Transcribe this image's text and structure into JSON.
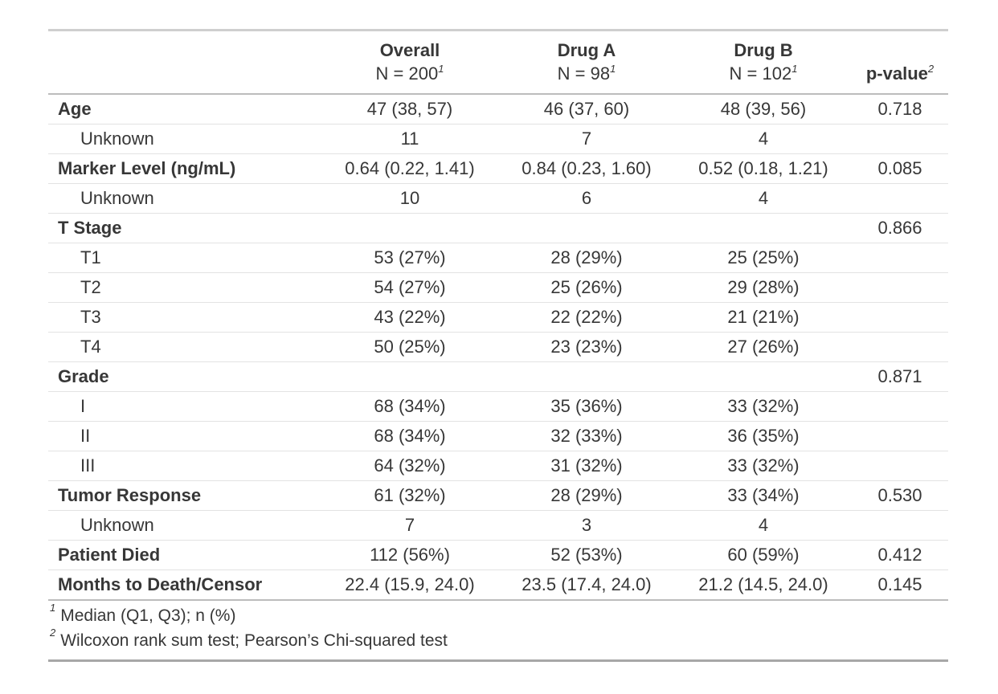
{
  "chart_data": {
    "type": "table",
    "title": "",
    "columns": [
      {
        "key": "label",
        "label": "",
        "sub": "",
        "footnote_mark": ""
      },
      {
        "key": "overall",
        "label": "Overall",
        "sub": "N = 200",
        "footnote_mark": "1"
      },
      {
        "key": "drug_a",
        "label": "Drug A",
        "sub": "N = 98",
        "footnote_mark": "1"
      },
      {
        "key": "drug_b",
        "label": "Drug B",
        "sub": "N = 102",
        "footnote_mark": "1"
      },
      {
        "key": "p_value",
        "label": "p-value",
        "sub": "",
        "footnote_mark": "2"
      }
    ],
    "rows": [
      {
        "label": "Age",
        "bold": true,
        "indent": false,
        "overall": "47 (38, 57)",
        "drug_a": "46 (37, 60)",
        "drug_b": "48 (39, 56)",
        "p_value": "0.718"
      },
      {
        "label": "Unknown",
        "bold": false,
        "indent": true,
        "overall": "11",
        "drug_a": "7",
        "drug_b": "4",
        "p_value": ""
      },
      {
        "label": "Marker Level (ng/mL)",
        "bold": true,
        "indent": false,
        "overall": "0.64 (0.22, 1.41)",
        "drug_a": "0.84 (0.23, 1.60)",
        "drug_b": "0.52 (0.18, 1.21)",
        "p_value": "0.085"
      },
      {
        "label": "Unknown",
        "bold": false,
        "indent": true,
        "overall": "10",
        "drug_a": "6",
        "drug_b": "4",
        "p_value": ""
      },
      {
        "label": "T Stage",
        "bold": true,
        "indent": false,
        "overall": "",
        "drug_a": "",
        "drug_b": "",
        "p_value": "0.866"
      },
      {
        "label": "T1",
        "bold": false,
        "indent": true,
        "overall": "53 (27%)",
        "drug_a": "28 (29%)",
        "drug_b": "25 (25%)",
        "p_value": ""
      },
      {
        "label": "T2",
        "bold": false,
        "indent": true,
        "overall": "54 (27%)",
        "drug_a": "25 (26%)",
        "drug_b": "29 (28%)",
        "p_value": ""
      },
      {
        "label": "T3",
        "bold": false,
        "indent": true,
        "overall": "43 (22%)",
        "drug_a": "22 (22%)",
        "drug_b": "21 (21%)",
        "p_value": ""
      },
      {
        "label": "T4",
        "bold": false,
        "indent": true,
        "overall": "50 (25%)",
        "drug_a": "23 (23%)",
        "drug_b": "27 (26%)",
        "p_value": ""
      },
      {
        "label": "Grade",
        "bold": true,
        "indent": false,
        "overall": "",
        "drug_a": "",
        "drug_b": "",
        "p_value": "0.871"
      },
      {
        "label": "I",
        "bold": false,
        "indent": true,
        "overall": "68 (34%)",
        "drug_a": "35 (36%)",
        "drug_b": "33 (32%)",
        "p_value": ""
      },
      {
        "label": "II",
        "bold": false,
        "indent": true,
        "overall": "68 (34%)",
        "drug_a": "32 (33%)",
        "drug_b": "36 (35%)",
        "p_value": ""
      },
      {
        "label": "III",
        "bold": false,
        "indent": true,
        "overall": "64 (32%)",
        "drug_a": "31 (32%)",
        "drug_b": "33 (32%)",
        "p_value": ""
      },
      {
        "label": "Tumor Response",
        "bold": true,
        "indent": false,
        "overall": "61 (32%)",
        "drug_a": "28 (29%)",
        "drug_b": "33 (34%)",
        "p_value": "0.530"
      },
      {
        "label": "Unknown",
        "bold": false,
        "indent": true,
        "overall": "7",
        "drug_a": "3",
        "drug_b": "4",
        "p_value": ""
      },
      {
        "label": "Patient Died",
        "bold": true,
        "indent": false,
        "overall": "112 (56%)",
        "drug_a": "52 (53%)",
        "drug_b": "60 (59%)",
        "p_value": "0.412"
      },
      {
        "label": "Months to Death/Censor",
        "bold": true,
        "indent": false,
        "overall": "22.4 (15.9, 24.0)",
        "drug_a": "23.5 (17.4, 24.0)",
        "drug_b": "21.2 (14.5, 24.0)",
        "p_value": "0.145"
      }
    ],
    "footnotes": [
      {
        "mark": "1",
        "text": "Median (Q1, Q3); n (%)"
      },
      {
        "mark": "2",
        "text": "Wilcoxon rank sum test; Pearson’s Chi-squared test"
      }
    ],
    "layout": {
      "group_columns_align": "center",
      "label_column_align": "left"
    },
    "colors": {
      "text": "#373737",
      "border_top": "#cfcfcf",
      "border_header": "#bcbcbc",
      "border_row": "#e3e3e3",
      "border_bottom": "#a7a7a7",
      "background": "#ffffff"
    }
  }
}
